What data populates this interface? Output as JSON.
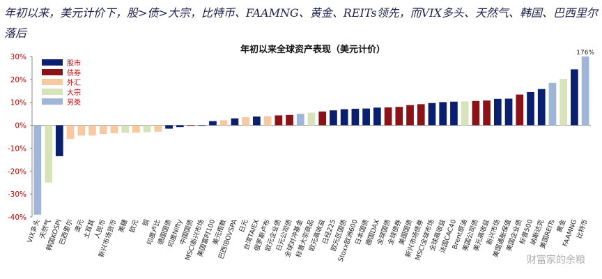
{
  "headline": "年初以来，美元计价下，股>债>大宗，比特币、FAAMNG、黄金、REITs领先，而VIX多头、天然气、韩国、巴西里尔落后",
  "watermark": "财富家的余粮",
  "colors": {
    "股市": "#0b1f6f",
    "债券": "#8b1217",
    "外汇": "#f8c8a0",
    "大宗": "#d7e3b8",
    "另类": "#9fb6d8"
  },
  "chart_data": {
    "type": "bar",
    "title": "年初以来全球资产表现（美元计价）",
    "ylim": [
      -40,
      30
    ],
    "yticks": [
      -40,
      -30,
      -20,
      -10,
      0,
      10,
      20,
      30
    ],
    "ytick_labels": [
      "-40%",
      "-30%",
      "-20%",
      "-10%",
      "0%",
      "10%",
      "20%",
      "30%"
    ],
    "legend": {
      "placement": "top-left",
      "entries": [
        "股市",
        "债券",
        "外汇",
        "大宗",
        "另类"
      ]
    },
    "bar_label": "176%",
    "categories": [
      "VIX多头",
      "天然气",
      "韩国KOSPI",
      "巴西里尔",
      "澳元",
      "土耳其",
      "人民币",
      "新兴市场货币",
      "美糖",
      "欧元",
      "铜",
      "印度卢比",
      "德国国债",
      "印度Nifty",
      "中国国债",
      "MSCI新兴市场",
      "美国富时100",
      "美元指数",
      "巴西IBOVSPA",
      "日元",
      "台湾TAIEX",
      "俄罗斯卢布",
      "欧元企业债",
      "日元公司债",
      "全球对冲基金",
      "标普大宗商品",
      "欧元高收益",
      "日经225",
      "欧元区国债",
      "Stoxx欧洲600",
      "日本国债",
      "德国DAX",
      "全球国债",
      "全球债券",
      "美国国债",
      "新兴市场债券",
      "MSCI全球市场",
      "全球高收益",
      "法国CAC40",
      "Brent原油",
      "美国公司债",
      "美元高收益",
      "新兴市场",
      "美国通胀保值",
      "美国企业债",
      "标普500",
      "纳斯达克",
      "美国REITs",
      "黄金",
      "FAAMNG",
      "比特币"
    ],
    "classes": [
      "另类",
      "大宗",
      "股市",
      "外汇",
      "外汇",
      "外汇",
      "外汇",
      "外汇",
      "大宗",
      "外汇",
      "大宗",
      "外汇",
      "股市",
      "股市",
      "债券",
      "股市",
      "股市",
      "外汇",
      "股市",
      "外汇",
      "股市",
      "外汇",
      "债券",
      "债券",
      "另类",
      "大宗",
      "债券",
      "股市",
      "股市",
      "股市",
      "股市",
      "股市",
      "债券",
      "债券",
      "债券",
      "债券",
      "股市",
      "股市",
      "股市",
      "大宗",
      "债券",
      "债券",
      "股市",
      "股市",
      "债券",
      "股市",
      "股市",
      "另类",
      "大宗",
      "股市",
      "另类"
    ],
    "values": [
      -39,
      -25,
      -13.5,
      -6,
      -4.5,
      -4.5,
      -3.8,
      -3.5,
      -3.3,
      -3.2,
      -3,
      -2.8,
      -1.5,
      -0.8,
      -0.3,
      -0.2,
      1.8,
      2.2,
      3,
      3.5,
      3.8,
      4,
      4.3,
      4.5,
      5,
      5.5,
      6,
      6.5,
      7,
      7.2,
      7.3,
      7.7,
      7.8,
      8,
      8.8,
      9.2,
      9.7,
      10.1,
      10.3,
      10.4,
      10.6,
      10.8,
      11.5,
      11.6,
      13.4,
      14.5,
      15.8,
      18.5,
      20.2,
      24.4,
      30
    ]
  }
}
